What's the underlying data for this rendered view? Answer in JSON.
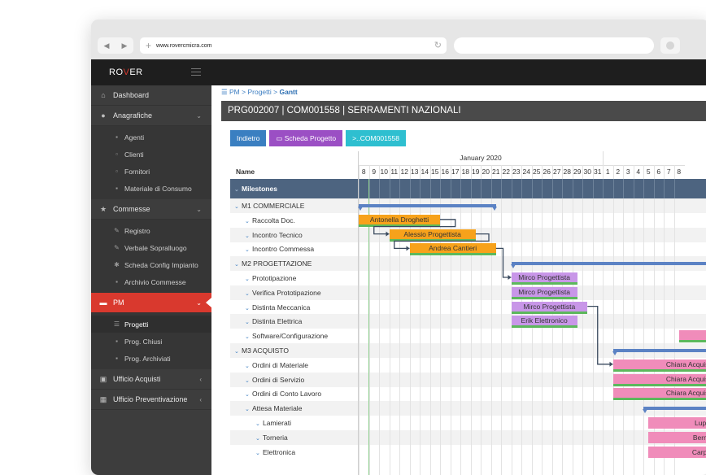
{
  "browser": {
    "url": "www.rovercmicra.com"
  },
  "app": {
    "logo_pre": "RO",
    "logo_accent": "V",
    "logo_post": "ER"
  },
  "sidebar": {
    "dashboard": "Dashboard",
    "anagrafiche": "Anagrafiche",
    "agenti": "Agenti",
    "clienti": "Clienti",
    "fornitori": "Fornitori",
    "materiale": "Materiale di Consumo",
    "commesse": "Commesse",
    "registro": "Registro",
    "verbale": "Verbale Sopralluogo",
    "scheda": "Scheda Config Impianto",
    "archivio": "Archivio Commesse",
    "pm": "PM",
    "progetti": "Progetti",
    "chiusi": "Prog. Chiusi",
    "archiviati": "Prog. Archiviati",
    "acquisti": "Ufficio Acquisti",
    "preventivazione": "Ufficio Preventivazione"
  },
  "breadcrumb": {
    "pm": "PM",
    "sep1": ">",
    "progetti": "Progetti",
    "sep2": ">",
    "current": "Gantt"
  },
  "page": {
    "title": "PRG002007 | COM001558 | SERRAMENTI NAZIONALI"
  },
  "buttons": {
    "back": "Indietro",
    "scheda": "Scheda Progetto",
    "commessa": ">..COM001558"
  },
  "colors": {
    "back": "#3a7fc1",
    "scheda": "#9b4fc4",
    "commessa": "#2ebfd0",
    "accent": "#d9392e"
  },
  "gantt": {
    "name_header": "Name",
    "month": "January 2020",
    "days": [
      "8",
      "9",
      "10",
      "11",
      "12",
      "13",
      "14",
      "15",
      "16",
      "17",
      "18",
      "19",
      "20",
      "21",
      "22",
      "23",
      "24",
      "25",
      "26",
      "27",
      "28",
      "29",
      "30",
      "31",
      "1",
      "2",
      "3",
      "4",
      "5",
      "6",
      "7",
      "8"
    ],
    "rows": [
      {
        "label": "Milestones"
      },
      {
        "label": "M1 COMMERCIALE"
      },
      {
        "label": "Raccolta Doc."
      },
      {
        "label": "Incontro Tecnico"
      },
      {
        "label": "Incontro Commessa"
      },
      {
        "label": "M2 PROGETTAZIONE"
      },
      {
        "label": "Prototipazione"
      },
      {
        "label": "Verifica Prototipazione"
      },
      {
        "label": "Distinta Meccanica"
      },
      {
        "label": "Distinta Elettrica"
      },
      {
        "label": "Software/Configurazione"
      },
      {
        "label": "M3 ACQUISTO"
      },
      {
        "label": "Ordini di Materiale"
      },
      {
        "label": "Ordini di Servizio"
      },
      {
        "label": "Ordini di Conto Lavoro"
      },
      {
        "label": "Attesa Materiale"
      },
      {
        "label": "Lamierati"
      },
      {
        "label": "Torneria"
      },
      {
        "label": "Elettronica"
      }
    ],
    "tasks": [
      {
        "label": "Antonella Droghetti"
      },
      {
        "label": "Alessio Progettista"
      },
      {
        "label": "Andrea Cantieri"
      },
      {
        "label": "Mirco Progettista"
      },
      {
        "label": "Mirco Progettista"
      },
      {
        "label": "Mirco Progettista"
      },
      {
        "label": "Erik Elettronico"
      },
      {
        "label": ""
      },
      {
        "label": "Chiara Acquisti"
      },
      {
        "label": "Chiara Acquisti"
      },
      {
        "label": "Chiara Acquisti"
      },
      {
        "label": "Luppi sr"
      },
      {
        "label": "Bermar s"
      },
      {
        "label": "Carpanell"
      }
    ]
  }
}
